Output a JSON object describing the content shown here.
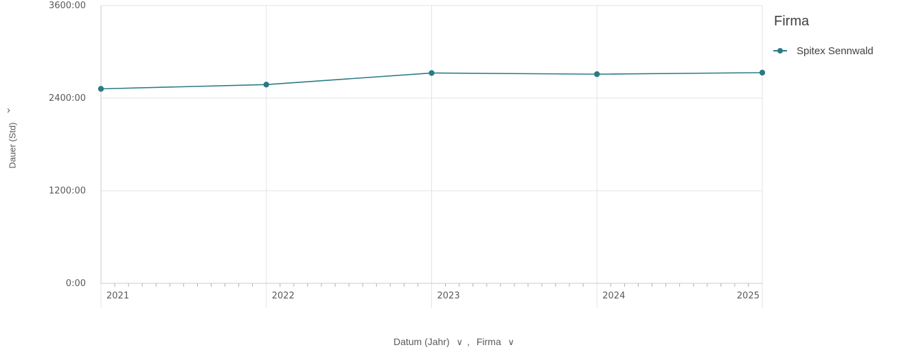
{
  "chart_data": {
    "type": "line",
    "x": [
      "2021",
      "2022",
      "2023",
      "2024",
      "2025"
    ],
    "series": [
      {
        "name": "Spitex Sennwald",
        "values": [
          2520,
          2575,
          2725,
          2710,
          2730
        ]
      }
    ],
    "ylabel": "Dauer (Std)",
    "xlabel": "Datum (Jahr)",
    "xlabel_secondary": "Firma",
    "xlabel_separator": ",",
    "yticks": [
      {
        "value": 0,
        "label": "0:00"
      },
      {
        "value": 1200,
        "label": "1200:00"
      },
      {
        "value": 2400,
        "label": "2400:00"
      },
      {
        "value": 3600,
        "label": "3600:00"
      }
    ],
    "ylim": [
      0,
      3600
    ],
    "grid": true,
    "legend": {
      "title": "Firma",
      "placement": "top-right"
    },
    "colors": {
      "series": "#2a7a85",
      "grid": "#e3e3e3",
      "axis": "#c8c8c8"
    },
    "icons": {
      "expand": "chevron-right-icon",
      "dropdown": "chevron-down-icon"
    }
  }
}
